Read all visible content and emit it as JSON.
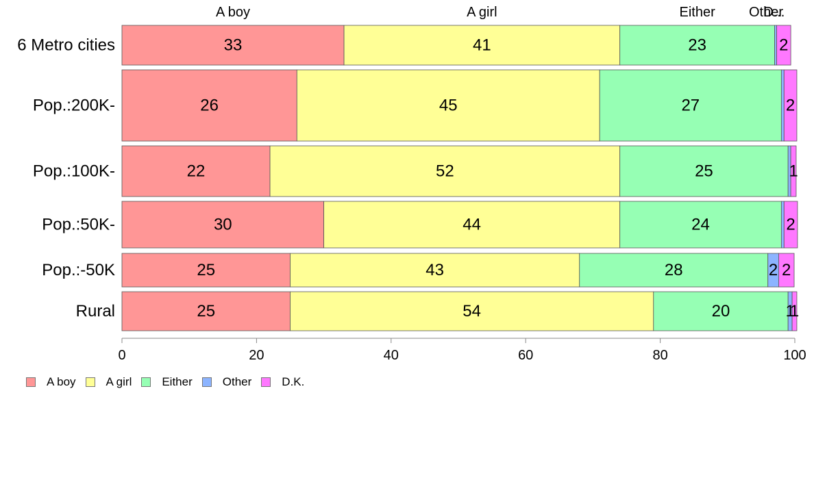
{
  "chart_data": {
    "type": "bar",
    "orientation": "horizontal",
    "stacked": true,
    "categories": [
      "6 Metro cities",
      "Pop.:200K-",
      "Pop.:100K-",
      "Pop.:50K-",
      "Pop.:-50K",
      "Rural"
    ],
    "series": [
      {
        "name": "A boy",
        "color": "#FF9696",
        "values": [
          33,
          26,
          22,
          30,
          25,
          25
        ]
      },
      {
        "name": "A girl",
        "color": "#FFFF96",
        "values": [
          41,
          45,
          52,
          44,
          43,
          54
        ]
      },
      {
        "name": "Either",
        "color": "#96FFB4",
        "values": [
          23,
          27,
          25,
          24,
          28,
          20
        ]
      },
      {
        "name": "Other",
        "color": "#8CB4FF",
        "values": [
          0.3,
          0.4,
          0.4,
          0.4,
          1.6,
          0.6
        ]
      },
      {
        "name": "D.K.",
        "color": "#FF78FF",
        "values": [
          2.1,
          1.9,
          0.8,
          2.0,
          2.3,
          0.7
        ]
      }
    ],
    "data_labels": [
      [
        "33",
        "41",
        "23",
        "",
        "2"
      ],
      [
        "26",
        "45",
        "27",
        "",
        "2"
      ],
      [
        "22",
        "52",
        "25",
        "",
        "1"
      ],
      [
        "30",
        "44",
        "24",
        "",
        "2"
      ],
      [
        "25",
        "43",
        "28",
        "2",
        "2"
      ],
      [
        "25",
        "54",
        "20",
        "1",
        "1"
      ]
    ],
    "top_labels": [
      "A boy",
      "A girl",
      "Either",
      "Other",
      "D..."
    ],
    "xlim": [
      0,
      100
    ],
    "xticks": [
      "0",
      "20",
      "40",
      "60",
      "80",
      "100"
    ],
    "grid": false,
    "legend_position": "bottom-left"
  }
}
